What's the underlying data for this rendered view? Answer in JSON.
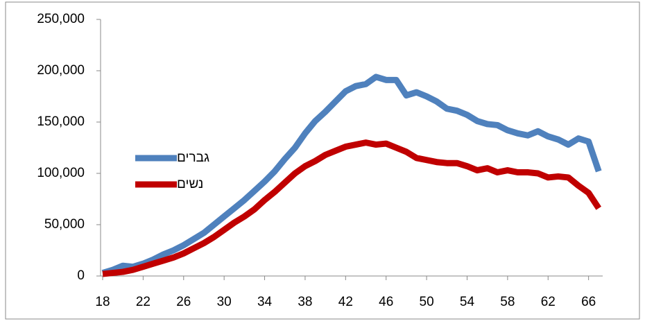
{
  "chart_data": {
    "type": "line",
    "x": [
      18,
      19,
      20,
      21,
      22,
      23,
      24,
      25,
      26,
      27,
      28,
      29,
      30,
      31,
      32,
      33,
      34,
      35,
      36,
      37,
      38,
      39,
      40,
      41,
      42,
      43,
      44,
      45,
      46,
      47,
      48,
      49,
      50,
      51,
      52,
      53,
      54,
      55,
      56,
      57,
      58,
      59,
      60,
      61,
      62,
      63,
      64,
      65,
      66,
      67
    ],
    "series": [
      {
        "name": "גברים",
        "color": "#4f81bd",
        "values": [
          3000,
          6000,
          10000,
          9000,
          12000,
          16000,
          21000,
          25000,
          30000,
          36000,
          42000,
          50000,
          58000,
          66000,
          74000,
          83000,
          92000,
          102000,
          114000,
          125000,
          139000,
          151000,
          160000,
          170000,
          180000,
          185000,
          187000,
          194000,
          191000,
          191000,
          176000,
          179000,
          175000,
          170000,
          163000,
          161000,
          157000,
          151000,
          148000,
          147000,
          142000,
          139000,
          137000,
          141000,
          136000,
          133000,
          128000,
          134000,
          131000,
          102000
        ]
      },
      {
        "name": "נשים",
        "color": "#c00000",
        "values": [
          2000,
          3000,
          4000,
          6000,
          9000,
          12000,
          15000,
          18000,
          22000,
          27000,
          32000,
          38000,
          45000,
          52000,
          58000,
          65000,
          74000,
          82000,
          91000,
          100000,
          107000,
          112000,
          118000,
          122000,
          126000,
          128000,
          130000,
          128000,
          129000,
          125000,
          121000,
          115000,
          113000,
          111000,
          110000,
          110000,
          107000,
          103000,
          105000,
          101000,
          103000,
          101000,
          101000,
          100000,
          96000,
          97000,
          96000,
          88000,
          81000,
          66000
        ]
      }
    ],
    "xlim": [
      18,
      67.6
    ],
    "xticks": [
      18,
      22,
      26,
      30,
      34,
      38,
      42,
      46,
      50,
      54,
      58,
      62,
      66
    ],
    "ylim": [
      0,
      250000
    ],
    "yticks": [
      0,
      {
        "value": 50000,
        "label": "50,000"
      },
      {
        "value": 100000,
        "label": "100,000"
      },
      {
        "value": 150000,
        "label": "150,000"
      },
      {
        "value": 200000,
        "label": "200,000"
      },
      {
        "value": 250000,
        "label": "250,000"
      }
    ],
    "legend": "center-left"
  }
}
